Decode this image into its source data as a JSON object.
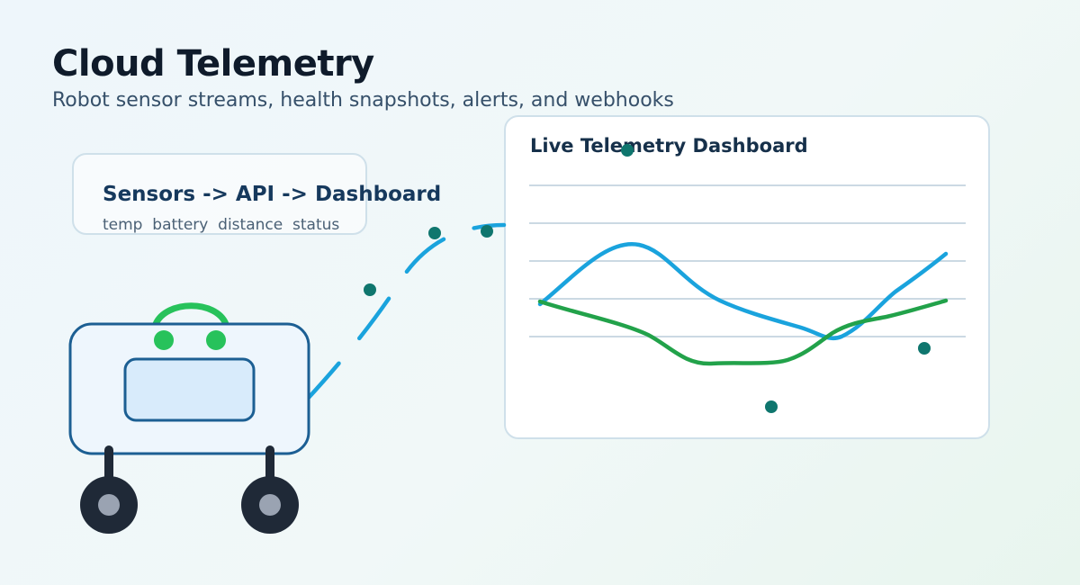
{
  "header": {
    "title": "Cloud Telemetry",
    "subtitle": "Robot sensor streams, health snapshots, alerts, and webhooks"
  },
  "flow_card": {
    "title": "Sensors -> API -> Dashboard",
    "fields": [
      "temp",
      "battery",
      "distance",
      "status"
    ]
  },
  "dashboard": {
    "title": "Live Telemetry Dashboard"
  },
  "colors": {
    "series_blue": "#1aa3dd",
    "series_green": "#22a24a",
    "dot_teal": "#0f766e",
    "robot_outline": "#1c5f93",
    "robot_body": "#eef6fd",
    "robot_screen": "#d8ebfb",
    "robot_accent": "#27c25b",
    "wheel": "#1f2937",
    "hub": "#9aa3b2",
    "grid": "#cbd9e3"
  }
}
